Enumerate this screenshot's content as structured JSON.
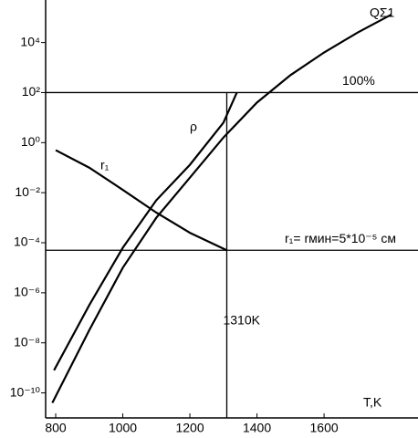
{
  "chart_data": {
    "type": "line",
    "xlabel": "T,K",
    "xlim": [
      770,
      1880
    ],
    "xticks": [
      800,
      1000,
      1200,
      1400,
      1600
    ],
    "ylim": [
      1e-11,
      500000
    ],
    "log_y": true,
    "yticks": [
      {
        "value": 1e-10,
        "label": "10⁻¹⁰"
      },
      {
        "value": 1e-08,
        "label": "10⁻⁸"
      },
      {
        "value": 1e-06,
        "label": "10⁻⁶"
      },
      {
        "value": 0.0001,
        "label": "10⁻⁴"
      },
      {
        "value": 0.01,
        "label": "10⁻²"
      },
      {
        "value": 1,
        "label": "10⁰"
      },
      {
        "value": 100,
        "label": "10²"
      },
      {
        "value": 10000,
        "label": "10⁴"
      }
    ],
    "series": [
      {
        "name": "QΣ1",
        "color": "#000000",
        "x": [
          790,
          900,
          1000,
          1100,
          1200,
          1300,
          1400,
          1500,
          1600,
          1700,
          1800
        ],
        "values": [
          4e-11,
          3.2e-08,
          1e-05,
          0.001,
          0.04,
          1.6,
          40,
          500,
          4000,
          25000,
          130000
        ]
      },
      {
        "name": "ρ",
        "color": "#000000",
        "x": [
          795,
          900,
          1000,
          1100,
          1200,
          1300,
          1340
        ],
        "values": [
          8e-10,
          3.2e-07,
          6.3e-05,
          0.005,
          0.13,
          6.3,
          100
        ]
      },
      {
        "name": "r₁",
        "color": "#000000",
        "x": [
          800,
          900,
          1000,
          1100,
          1200,
          1310
        ],
        "values": [
          0.5,
          0.1,
          0.013,
          0.0016,
          0.00025,
          5e-05
        ]
      }
    ],
    "hlines": [
      {
        "value": 100,
        "label": "100%"
      },
      {
        "value": 5e-05,
        "label": "r₁= rмин=5*10⁻⁵ см"
      }
    ],
    "vlines": [
      {
        "value": 1310,
        "label": "1310K"
      }
    ]
  }
}
